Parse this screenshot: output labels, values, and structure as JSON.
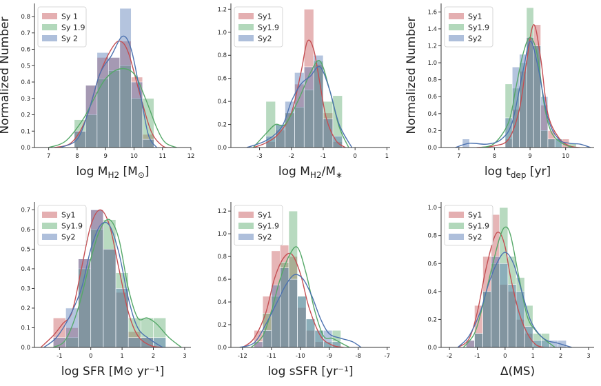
{
  "colors": {
    "Sy1": "#c44e52",
    "Sy1.9": "#55a868",
    "Sy2": "#4c72b0"
  },
  "chart_data": [
    {
      "type": "bar",
      "legend": [
        "Sy 1",
        "Sy 1.9",
        "Sy 2"
      ],
      "legend_placement": "upper-left",
      "xlabel": "log M_H2 [M_⊙]",
      "ylabel": "Normalized Number",
      "xlim": [
        6.5,
        12
      ],
      "ylim": [
        0,
        0.88
      ],
      "xticks": [
        "7",
        "8",
        "9",
        "10",
        "11",
        "12"
      ],
      "yticks": [
        "0.0",
        "0.1",
        "0.2",
        "0.3",
        "0.4",
        "0.5",
        "0.6",
        "0.7",
        "0.8"
      ],
      "bin_edges": [
        7.9,
        8.3,
        8.7,
        9.1,
        9.5,
        9.9,
        10.3,
        10.7
      ],
      "series": [
        {
          "values": [
            0.1,
            0.38,
            0.55,
            0.55,
            0.65,
            0.43,
            0.08
          ]
        },
        {
          "values": [
            0.17,
            0.2,
            0.42,
            0.47,
            0.5,
            0.3,
            0.3
          ]
        },
        {
          "values": [
            0.1,
            0.38,
            0.58,
            0.55,
            0.85,
            0.4,
            0.05
          ]
        }
      ],
      "kde": [
        {
          "x": [
            7.2,
            7.8,
            8.3,
            8.8,
            9.2,
            9.5,
            9.8,
            10.2,
            10.6,
            11.0,
            11.3
          ],
          "y": [
            0.0,
            0.03,
            0.17,
            0.45,
            0.6,
            0.65,
            0.58,
            0.33,
            0.1,
            0.01,
            0.0
          ]
        },
        {
          "x": [
            7.0,
            7.6,
            8.2,
            8.6,
            9.0,
            9.5,
            10.0,
            10.4,
            10.8,
            11.1,
            11.5
          ],
          "y": [
            0.0,
            0.04,
            0.17,
            0.3,
            0.42,
            0.48,
            0.45,
            0.3,
            0.12,
            0.03,
            0.0
          ]
        },
        {
          "x": [
            7.4,
            8.0,
            8.4,
            8.8,
            9.2,
            9.6,
            9.9,
            10.2,
            10.5,
            10.8
          ],
          "y": [
            0.0,
            0.05,
            0.22,
            0.45,
            0.56,
            0.68,
            0.6,
            0.35,
            0.08,
            0.0
          ]
        }
      ]
    },
    {
      "type": "bar",
      "legend": [
        "Sy1",
        "Sy1.9",
        "Sy2"
      ],
      "legend_placement": "upper-left",
      "xlabel": "log M_H2/M_∗",
      "ylabel": "",
      "xlim": [
        -3.9,
        1.1
      ],
      "ylim": [
        0,
        1.25
      ],
      "xticks": [
        "-3",
        "-2",
        "-1",
        "0",
        "1"
      ],
      "yticks": [
        "0.0",
        "0.2",
        "0.4",
        "0.6",
        "0.8",
        "1.0",
        "1.2"
      ],
      "bin_edges": [
        -2.8,
        -2.5,
        -2.2,
        -1.9,
        -1.6,
        -1.3,
        -1.0,
        -0.7,
        -0.4
      ],
      "series": [
        {
          "values": [
            0.05,
            0.15,
            0.3,
            0.55,
            1.2,
            0.72,
            0.3,
            0.05
          ]
        },
        {
          "values": [
            0.4,
            0.2,
            0.3,
            0.35,
            0.5,
            0.75,
            0.4,
            0.45
          ]
        },
        {
          "values": [
            0.1,
            0.2,
            0.4,
            0.65,
            0.7,
            0.8,
            0.25,
            0.1
          ]
        }
      ],
      "kde": [
        {
          "x": [
            -3.2,
            -2.8,
            -2.4,
            -2.0,
            -1.7,
            -1.5,
            -1.3,
            -1.1,
            -0.9,
            -0.6,
            -0.3
          ],
          "y": [
            0.0,
            0.04,
            0.12,
            0.3,
            0.65,
            0.92,
            0.85,
            0.55,
            0.25,
            0.06,
            0.0
          ]
        },
        {
          "x": [
            -3.2,
            -2.8,
            -2.5,
            -2.2,
            -1.8,
            -1.4,
            -1.1,
            -0.8,
            -0.5,
            -0.2
          ],
          "y": [
            0.0,
            0.12,
            0.2,
            0.2,
            0.4,
            0.65,
            0.75,
            0.5,
            0.18,
            0.0
          ]
        },
        {
          "x": [
            -3.4,
            -2.8,
            -2.3,
            -2.0,
            -1.7,
            -1.4,
            -1.1,
            -0.8,
            -0.5,
            -0.1
          ],
          "y": [
            0.0,
            0.06,
            0.18,
            0.4,
            0.55,
            0.62,
            0.7,
            0.5,
            0.2,
            0.0
          ]
        }
      ]
    },
    {
      "type": "bar",
      "legend": [
        "Sy1",
        "Sy1.9",
        "Sy2"
      ],
      "legend_placement": "upper-left",
      "xlabel": "log t_dep [yr]",
      "ylabel": "Normalized Number",
      "xlim": [
        6.5,
        10.8
      ],
      "ylim": [
        0,
        1.7
      ],
      "xticks": [
        "7",
        "8",
        "9",
        "10"
      ],
      "yticks": [
        "0.0",
        "0.2",
        "0.4",
        "0.6",
        "0.8",
        "1.0",
        "1.2",
        "1.4",
        "1.6"
      ],
      "bin_edges": [
        7.1,
        7.3,
        8.3,
        8.5,
        8.7,
        8.9,
        9.1,
        9.3,
        9.5,
        9.7,
        9.9,
        10.1,
        10.3
      ],
      "series": [
        {
          "values": [
            0.0,
            0.0,
            0.1,
            0.45,
            0.9,
            1.3,
            1.45,
            0.5,
            0.2,
            0.0,
            0.1,
            0.0
          ]
        },
        {
          "values": [
            0.0,
            0.0,
            0.75,
            0.7,
            1.0,
            1.65,
            1.2,
            0.2,
            0.1,
            0.1,
            0.0,
            0.05
          ]
        },
        {
          "values": [
            0.1,
            0.0,
            0.35,
            0.95,
            1.1,
            1.3,
            1.2,
            0.6,
            0.1,
            0.1,
            0.0,
            0.0
          ]
        }
      ],
      "kde": [
        {
          "x": [
            7.5,
            8.0,
            8.4,
            8.7,
            8.9,
            9.1,
            9.3,
            9.5,
            9.8,
            10.1,
            10.4
          ],
          "y": [
            0.0,
            0.02,
            0.1,
            0.45,
            1.0,
            1.45,
            1.05,
            0.4,
            0.12,
            0.02,
            0.0
          ]
        },
        {
          "x": [
            7.6,
            8.0,
            8.4,
            8.6,
            8.8,
            9.0,
            9.2,
            9.4,
            9.6,
            9.9,
            10.2
          ],
          "y": [
            0.0,
            0.05,
            0.3,
            0.7,
            1.1,
            1.3,
            1.1,
            0.5,
            0.18,
            0.05,
            0.0
          ]
        },
        {
          "x": [
            6.9,
            7.3,
            7.8,
            8.2,
            8.5,
            8.8,
            9.0,
            9.2,
            9.5,
            9.8,
            10.1,
            10.4,
            10.7
          ],
          "y": [
            0.0,
            0.05,
            0.04,
            0.1,
            0.3,
            0.9,
            1.25,
            1.0,
            0.35,
            0.1,
            0.05,
            0.04,
            0.0
          ]
        }
      ]
    },
    {
      "type": "bar",
      "legend": [
        "Sy1",
        "Sy1.9",
        "Sy2"
      ],
      "legend_placement": "upper-left",
      "xlabel": "log SFR [M⊙ yr⁻¹]",
      "ylabel": "",
      "xlim": [
        -1.8,
        3.2
      ],
      "ylim": [
        0,
        0.74
      ],
      "xticks": [
        "-1",
        "0",
        "1",
        "2",
        "3"
      ],
      "yticks": [
        "0.0",
        "0.1",
        "0.2",
        "0.3",
        "0.4",
        "0.5",
        "0.6",
        "0.7"
      ],
      "bin_edges": [
        -1.2,
        -0.8,
        -0.4,
        0.0,
        0.4,
        0.8,
        1.2,
        1.6,
        2.0,
        2.4
      ],
      "series": [
        {
          "values": [
            0.15,
            0.1,
            0.45,
            0.7,
            0.5,
            0.28,
            0.08,
            0.05,
            0.0
          ]
        },
        {
          "values": [
            0.0,
            0.05,
            0.4,
            0.6,
            0.65,
            0.38,
            0.15,
            0.15,
            0.15
          ]
        },
        {
          "values": [
            0.05,
            0.2,
            0.45,
            0.7,
            0.5,
            0.3,
            0.05,
            0.05,
            0.05
          ]
        }
      ],
      "kde": [
        {
          "x": [
            -1.6,
            -1.2,
            -0.9,
            -0.6,
            -0.3,
            0.0,
            0.3,
            0.6,
            0.9,
            1.2,
            1.5,
            1.9,
            2.3
          ],
          "y": [
            0.0,
            0.06,
            0.12,
            0.18,
            0.4,
            0.62,
            0.7,
            0.62,
            0.4,
            0.18,
            0.06,
            0.01,
            0.0
          ]
        },
        {
          "x": [
            -1.2,
            -0.8,
            -0.4,
            0.0,
            0.3,
            0.6,
            0.9,
            1.2,
            1.5,
            1.8,
            2.1,
            2.5,
            2.9
          ],
          "y": [
            0.0,
            0.04,
            0.2,
            0.45,
            0.6,
            0.65,
            0.55,
            0.3,
            0.15,
            0.15,
            0.12,
            0.05,
            0.0
          ]
        },
        {
          "x": [
            -1.5,
            -1.1,
            -0.7,
            -0.3,
            0.0,
            0.3,
            0.6,
            0.9,
            1.2,
            1.5,
            1.9,
            2.3
          ],
          "y": [
            0.0,
            0.05,
            0.15,
            0.3,
            0.5,
            0.62,
            0.62,
            0.48,
            0.25,
            0.1,
            0.04,
            0.0
          ]
        }
      ]
    },
    {
      "type": "bar",
      "legend": [
        "Sy1",
        "Sy1.9",
        "Sy2"
      ],
      "legend_placement": "upper-left",
      "xlabel": "log sSFR [yr⁻¹]",
      "ylabel": "",
      "xlim": [
        -12.4,
        -6.9
      ],
      "ylim": [
        0,
        1.28
      ],
      "xticks": [
        "-12",
        "-11",
        "-10",
        "-9",
        "-8",
        "-7"
      ],
      "yticks": [
        "0.0",
        "0.2",
        "0.4",
        "0.6",
        "0.8",
        "1.0",
        "1.2"
      ],
      "bin_edges": [
        -11.6,
        -11.3,
        -11.0,
        -10.7,
        -10.4,
        -10.1,
        -9.8,
        -9.5,
        -9.2,
        -8.9,
        -8.6
      ],
      "series": [
        {
          "values": [
            0.15,
            0.45,
            0.85,
            0.9,
            0.8,
            0.35,
            0.15,
            0.05,
            0.0,
            0.0
          ]
        },
        {
          "values": [
            0.0,
            0.3,
            0.45,
            0.75,
            1.2,
            0.45,
            0.25,
            0.15,
            0.05,
            0.15
          ]
        },
        {
          "values": [
            0.05,
            0.15,
            0.55,
            0.7,
            0.6,
            0.45,
            0.25,
            0.15,
            0.15,
            0.05
          ]
        }
      ],
      "kde": [
        {
          "x": [
            -12.0,
            -11.6,
            -11.2,
            -10.9,
            -10.6,
            -10.3,
            -10.0,
            -9.7,
            -9.3,
            -8.9,
            -8.5
          ],
          "y": [
            0.0,
            0.08,
            0.3,
            0.6,
            0.78,
            0.82,
            0.65,
            0.35,
            0.1,
            0.02,
            0.0
          ]
        },
        {
          "x": [
            -11.7,
            -11.3,
            -11.0,
            -10.7,
            -10.4,
            -10.1,
            -9.8,
            -9.5,
            -9.2,
            -8.9,
            -8.6,
            -8.3
          ],
          "y": [
            0.0,
            0.1,
            0.32,
            0.6,
            0.8,
            0.88,
            0.65,
            0.32,
            0.1,
            0.08,
            0.04,
            0.0
          ]
        },
        {
          "x": [
            -12.1,
            -11.6,
            -11.2,
            -10.8,
            -10.5,
            -10.2,
            -9.9,
            -9.6,
            -9.3,
            -9.0,
            -8.6,
            -8.2,
            -7.9
          ],
          "y": [
            0.0,
            0.04,
            0.2,
            0.4,
            0.55,
            0.64,
            0.6,
            0.45,
            0.25,
            0.12,
            0.08,
            0.05,
            0.0
          ]
        }
      ]
    },
    {
      "type": "bar",
      "legend": [
        "Sy1",
        "Sy1.9",
        "Sy2"
      ],
      "legend_placement": "upper-left",
      "xlabel": "Δ(MS)",
      "ylabel": "",
      "xlim": [
        -2.3,
        3.2
      ],
      "ylim": [
        0,
        1.04
      ],
      "xticks": [
        "-2",
        "-1",
        "0",
        "1",
        "2",
        "3"
      ],
      "yticks": [
        "0.0",
        "0.2",
        "0.4",
        "0.6",
        "0.8",
        "1.0"
      ],
      "bin_edges": [
        -1.4,
        -1.1,
        -0.8,
        -0.5,
        -0.2,
        0.1,
        0.4,
        0.7,
        1.0,
        1.3,
        1.6,
        1.9,
        2.2
      ],
      "series": [
        {
          "values": [
            0.05,
            0.3,
            0.65,
            0.95,
            0.45,
            0.4,
            0.2,
            0.1,
            0.0,
            0.0,
            0.0,
            0.0
          ]
        },
        {
          "values": [
            0.0,
            0.1,
            0.4,
            0.6,
            1.0,
            0.65,
            0.5,
            0.3,
            0.1,
            0.1,
            0.0,
            0.0
          ]
        },
        {
          "values": [
            0.05,
            0.1,
            0.4,
            0.65,
            0.6,
            0.45,
            0.4,
            0.15,
            0.05,
            0.05,
            0.05,
            0.05
          ]
        }
      ],
      "kde": [
        {
          "x": [
            -1.7,
            -1.3,
            -1.0,
            -0.7,
            -0.4,
            -0.2,
            0.0,
            0.2,
            0.5,
            0.8,
            1.1,
            1.4
          ],
          "y": [
            0.0,
            0.06,
            0.25,
            0.55,
            0.78,
            0.82,
            0.72,
            0.5,
            0.25,
            0.1,
            0.02,
            0.0
          ]
        },
        {
          "x": [
            -1.5,
            -1.1,
            -0.8,
            -0.5,
            -0.2,
            0.0,
            0.2,
            0.5,
            0.8,
            1.1,
            1.4,
            1.8
          ],
          "y": [
            0.0,
            0.1,
            0.3,
            0.55,
            0.78,
            0.86,
            0.8,
            0.5,
            0.22,
            0.12,
            0.06,
            0.0
          ]
        },
        {
          "x": [
            -1.7,
            -1.3,
            -0.9,
            -0.6,
            -0.3,
            0.0,
            0.3,
            0.6,
            0.9,
            1.2,
            1.5,
            1.9,
            2.4
          ],
          "y": [
            0.0,
            0.08,
            0.25,
            0.45,
            0.6,
            0.68,
            0.6,
            0.4,
            0.2,
            0.1,
            0.05,
            0.03,
            0.0
          ]
        }
      ]
    }
  ]
}
